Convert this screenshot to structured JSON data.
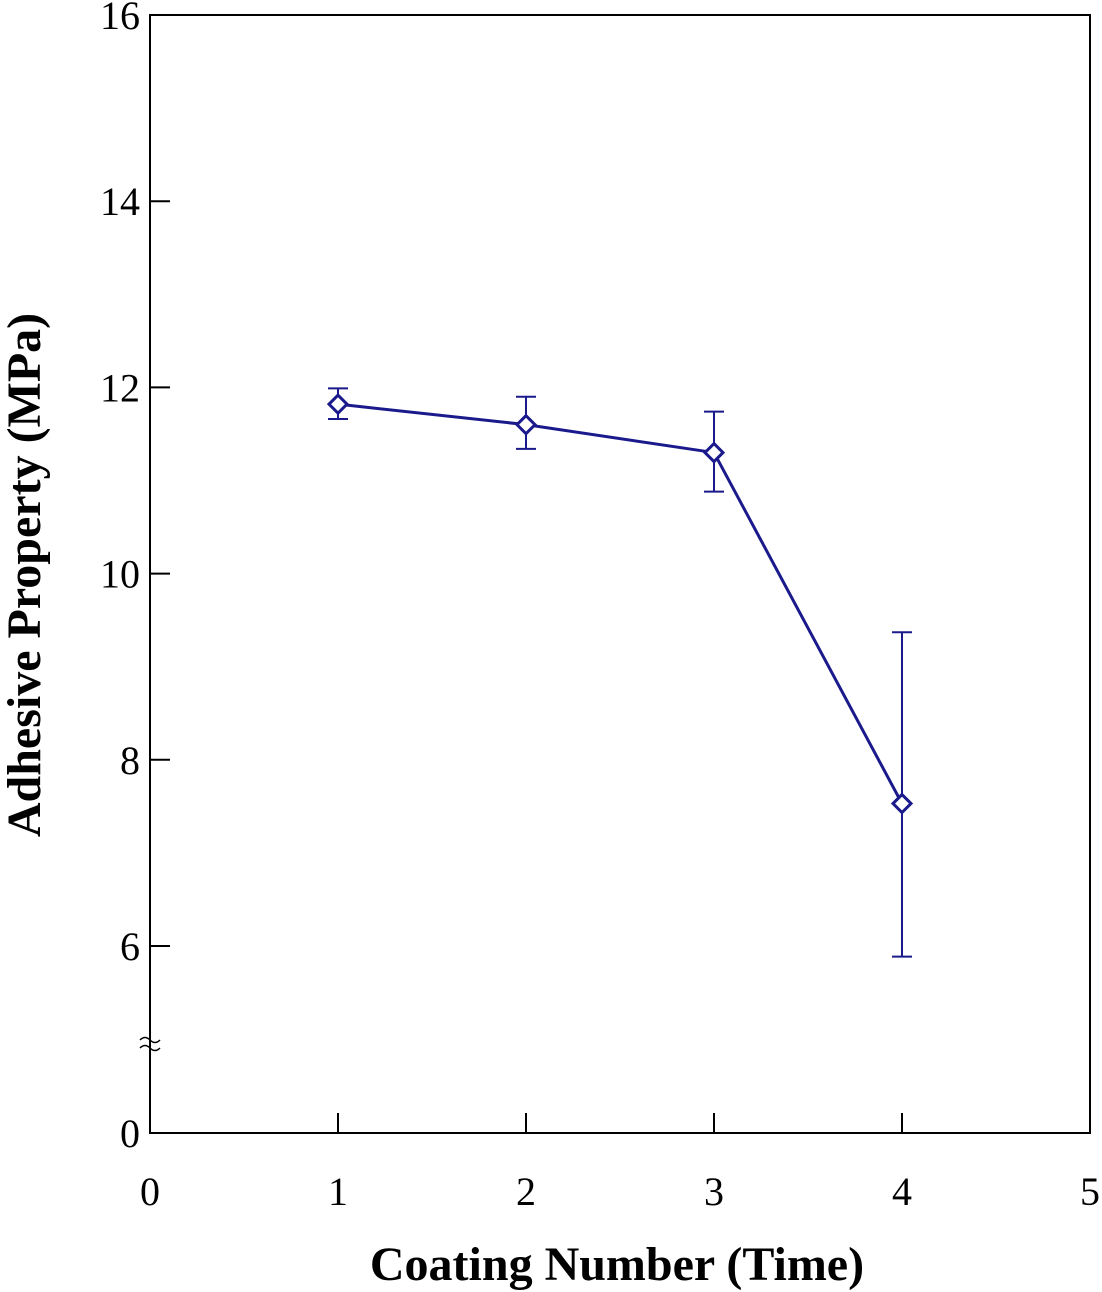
{
  "chart_data": {
    "type": "line",
    "xlabel": "Coating Number (Time)",
    "ylabel": "Adhesive Property (MPa)",
    "xlim": [
      0,
      5
    ],
    "ylim": [
      0,
      16
    ],
    "xticks": [
      0,
      1,
      2,
      3,
      4,
      5
    ],
    "yticks": [
      0,
      6,
      8,
      10,
      12,
      14,
      16
    ],
    "y_axis_break": [
      0,
      5
    ],
    "grid": false,
    "legend": "none",
    "series": [
      {
        "marker": "open-diamond",
        "color": "#1a1a8c",
        "x": [
          1,
          2,
          3,
          4
        ],
        "y": [
          11.82,
          11.6,
          11.3,
          7.53
        ],
        "error_low": [
          11.66,
          11.34,
          10.88,
          5.66
        ],
        "error_high": [
          11.99,
          11.9,
          11.74,
          9.37
        ]
      }
    ]
  }
}
